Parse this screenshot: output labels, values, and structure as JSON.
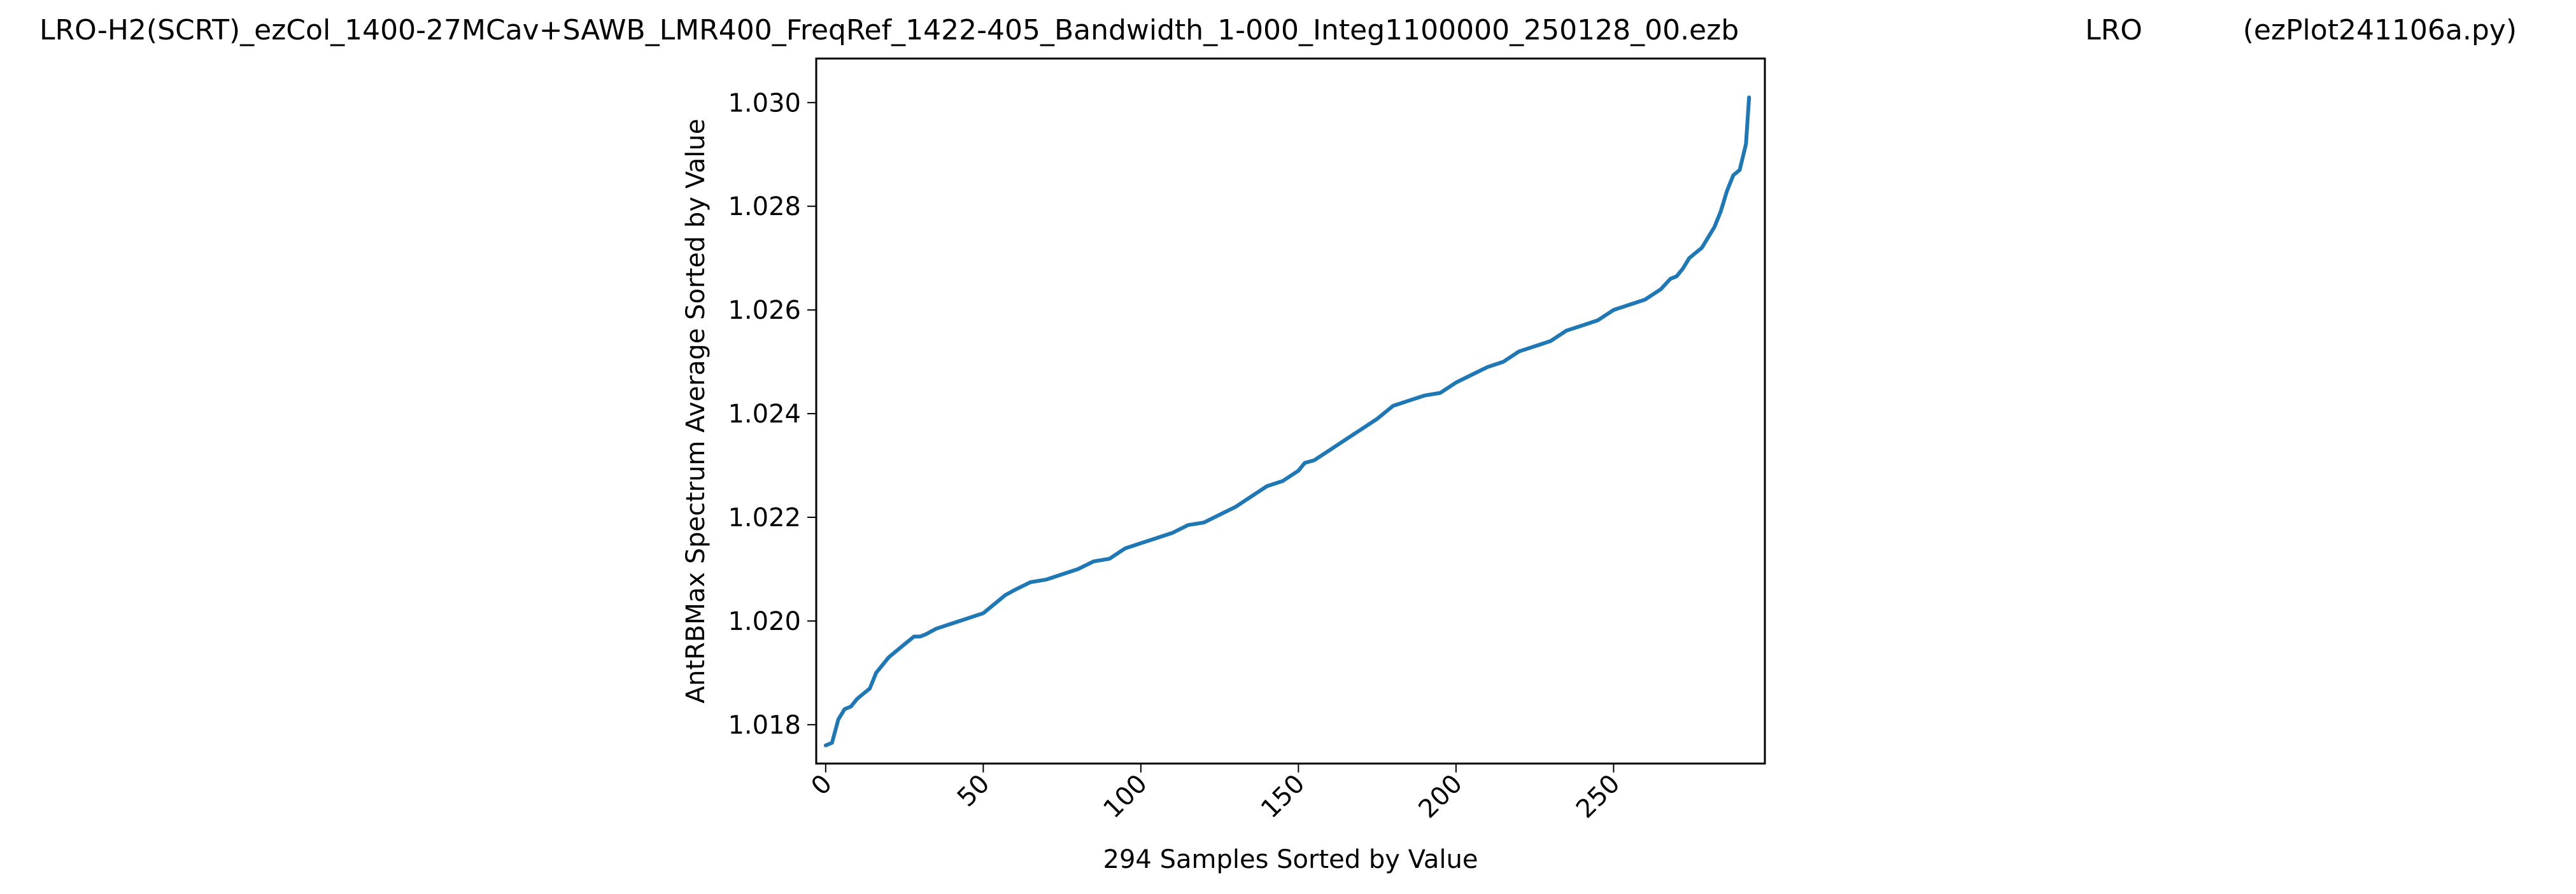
{
  "figure": {
    "title_left": "LRO-H2(SCRT)_ezCol_1400-27MCav+SAWB_LMR400_FreqRef_1422-405_Bandwidth_1-000_Integ1100000_250128_00.ezb",
    "title_center": "LRO",
    "title_right": "(ezPlot241106a.py)"
  },
  "chart_data": {
    "type": "line",
    "xlabel": "294 Samples Sorted by Value",
    "ylabel": "AntRBMax Spectrum Average Sorted by Value",
    "xlim": [
      -3,
      298
    ],
    "ylim": [
      1.01725,
      1.03085
    ],
    "x_ticks": [
      0,
      50,
      100,
      150,
      200,
      250
    ],
    "y_ticks": [
      1.018,
      1.02,
      1.022,
      1.024,
      1.026,
      1.028,
      1.03
    ],
    "y_tick_labels": [
      "1.018",
      "1.020",
      "1.022",
      "1.024",
      "1.026",
      "1.028",
      "1.030"
    ],
    "grid": false,
    "line_color": "#1f77b4",
    "series": [
      {
        "x": [
          0,
          2,
          4,
          6,
          8,
          10,
          12,
          14,
          16,
          18,
          20,
          22,
          25,
          28,
          30,
          32,
          35,
          40,
          45,
          50,
          53,
          55,
          57,
          60,
          65,
          70,
          75,
          80,
          85,
          90,
          95,
          100,
          105,
          110,
          115,
          120,
          125,
          130,
          135,
          140,
          145,
          150,
          152,
          155,
          160,
          165,
          170,
          175,
          180,
          185,
          190,
          195,
          200,
          205,
          210,
          215,
          220,
          225,
          230,
          235,
          240,
          245,
          250,
          255,
          260,
          265,
          268,
          270,
          272,
          274,
          276,
          278,
          280,
          282,
          284,
          286,
          288,
          290,
          292,
          293
        ],
        "values": [
          1.0176,
          1.01765,
          1.0181,
          1.0183,
          1.01835,
          1.0185,
          1.0186,
          1.0187,
          1.019,
          1.01915,
          1.0193,
          1.0194,
          1.01955,
          1.0197,
          1.0197,
          1.01975,
          1.01985,
          1.01995,
          1.02005,
          1.02015,
          1.0203,
          1.0204,
          1.0205,
          1.0206,
          1.02075,
          1.0208,
          1.0209,
          1.021,
          1.02115,
          1.0212,
          1.0214,
          1.0215,
          1.0216,
          1.0217,
          1.02185,
          1.0219,
          1.02205,
          1.0222,
          1.0224,
          1.0226,
          1.0227,
          1.0229,
          1.02305,
          1.0231,
          1.0233,
          1.0235,
          1.0237,
          1.0239,
          1.02415,
          1.02425,
          1.02435,
          1.0244,
          1.0246,
          1.02475,
          1.0249,
          1.025,
          1.0252,
          1.0253,
          1.0254,
          1.0256,
          1.0257,
          1.0258,
          1.026,
          1.0261,
          1.0262,
          1.0264,
          1.0266,
          1.02665,
          1.0268,
          1.027,
          1.0271,
          1.0272,
          1.0274,
          1.0276,
          1.0279,
          1.0283,
          1.0286,
          1.0287,
          1.0292,
          1.0301
        ]
      }
    ]
  }
}
